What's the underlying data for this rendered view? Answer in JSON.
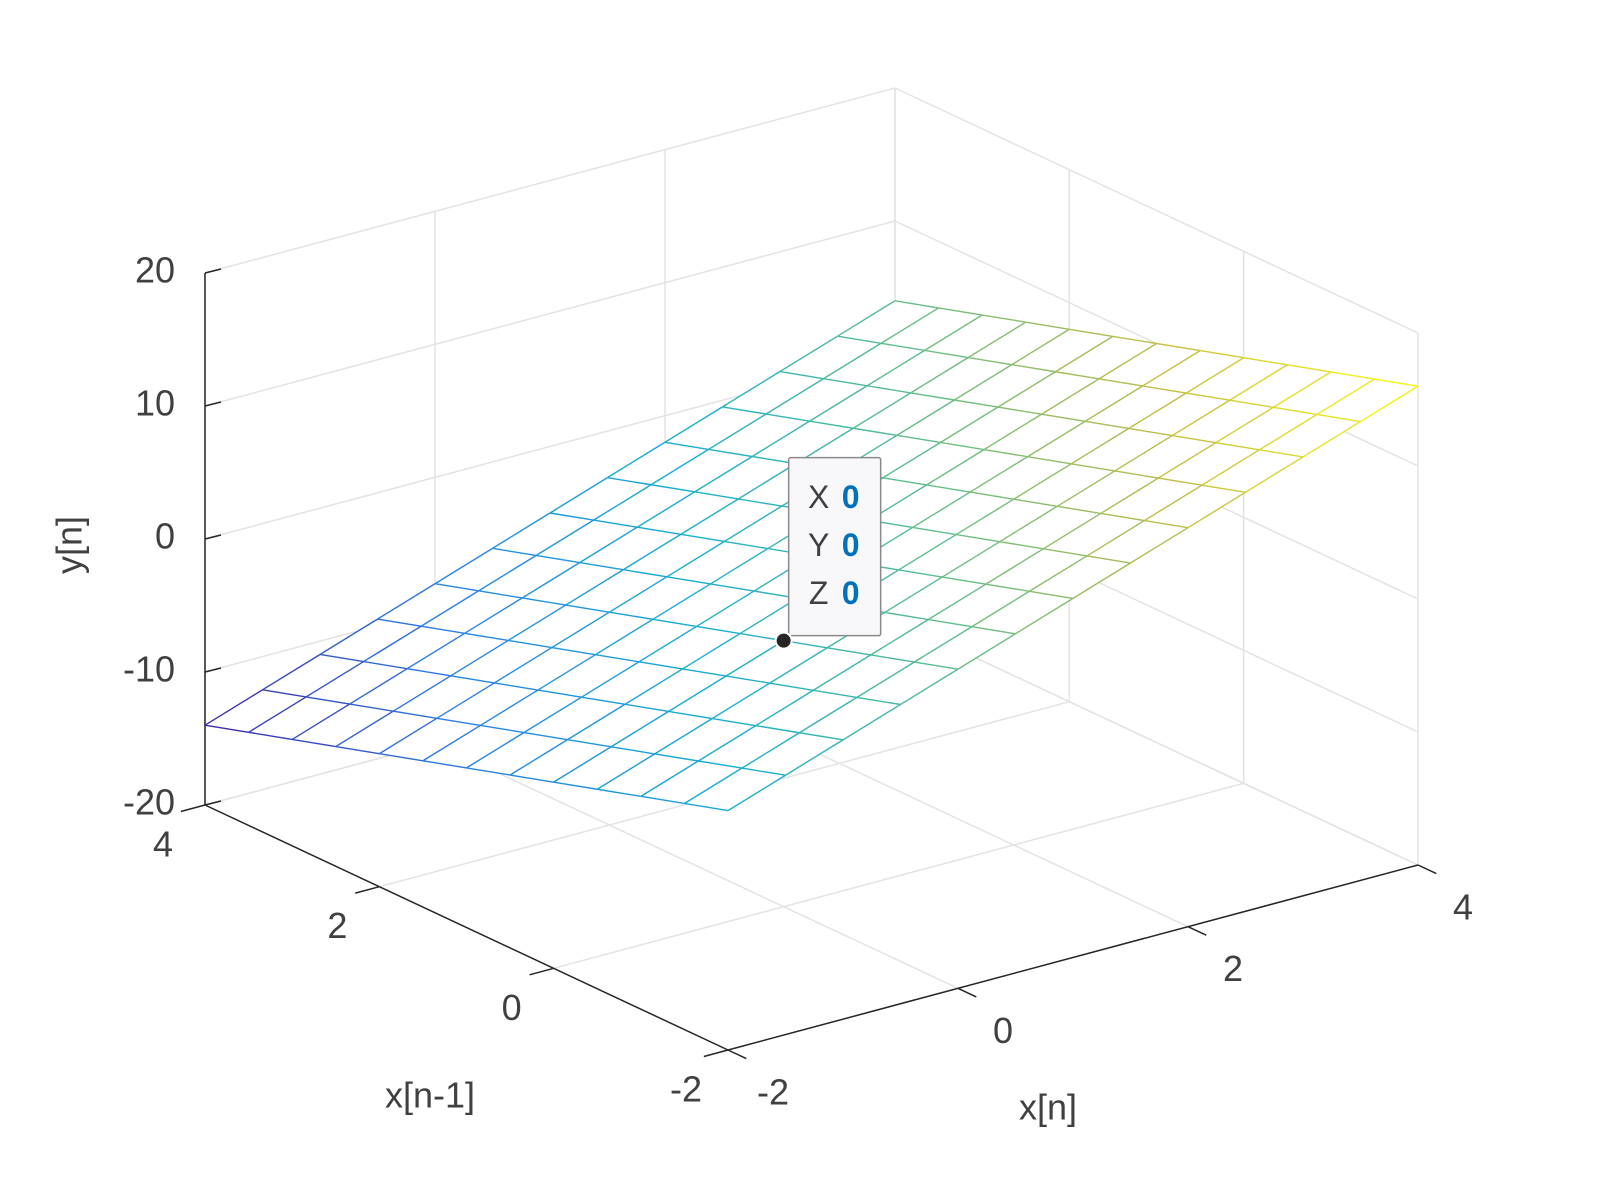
{
  "chart_data": {
    "type": "mesh",
    "xlabel": "x[n]",
    "ylabel": "x[n-1]",
    "zlabel": "y[n]",
    "x": [
      -2,
      -1.5,
      -1,
      -0.5,
      0,
      0.5,
      1,
      1.5,
      2,
      2.5,
      3,
      3.5,
      4
    ],
    "y": [
      -2,
      -1.5,
      -1,
      -0.5,
      0,
      0.5,
      1,
      1.5,
      2,
      2.5,
      3,
      3.5,
      4
    ],
    "z": [
      [
        -2,
        -0.5,
        1,
        2.5,
        4,
        5.5,
        7,
        8.5,
        10,
        11.5,
        13,
        14.5,
        16
      ],
      [
        -3,
        -1.5,
        0,
        1.5,
        3,
        4.5,
        6,
        7.5,
        9,
        10.5,
        12,
        13.5,
        15
      ],
      [
        -4,
        -2.5,
        -1,
        0.5,
        2,
        3.5,
        5,
        6.5,
        8,
        9.5,
        11,
        12.5,
        14
      ],
      [
        -5,
        -3.5,
        -2,
        -0.5,
        1,
        2.5,
        4,
        5.5,
        7,
        8.5,
        10,
        11.5,
        13
      ],
      [
        -6,
        -4.5,
        -3,
        -1.5,
        0,
        1.5,
        3,
        4.5,
        6,
        7.5,
        9,
        10.5,
        12
      ],
      [
        -7,
        -5.5,
        -4,
        -2.5,
        -1,
        0.5,
        2,
        3.5,
        5,
        6.5,
        8,
        9.5,
        11
      ],
      [
        -8,
        -6.5,
        -5,
        -3.5,
        -2,
        -0.5,
        1,
        2.5,
        4,
        5.5,
        7,
        8.5,
        10
      ],
      [
        -9,
        -7.5,
        -6,
        -4.5,
        -3,
        -1.5,
        0,
        1.5,
        3,
        4.5,
        6,
        7.5,
        9
      ],
      [
        -10,
        -8.5,
        -7,
        -5.5,
        -4,
        -2.5,
        -1,
        0.5,
        2,
        3.5,
        5,
        6.5,
        8
      ],
      [
        -11,
        -9.5,
        -8,
        -6.5,
        -5,
        -3.5,
        -2,
        -0.5,
        1,
        2.5,
        4,
        5.5,
        7
      ],
      [
        -12,
        -10.5,
        -9,
        -7.5,
        -6,
        -4.5,
        -3,
        -1.5,
        0,
        1.5,
        3,
        4.5,
        6
      ],
      [
        -13,
        -11.5,
        -10,
        -8.5,
        -7,
        -5.5,
        -4,
        -2.5,
        -1,
        0.5,
        2,
        3.5,
        5
      ],
      [
        -14,
        -12.5,
        -11,
        -9.5,
        -8,
        -6.5,
        -5,
        -3.5,
        -2,
        -0.5,
        1,
        2.5,
        4
      ]
    ],
    "xlim": [
      -2,
      4
    ],
    "ylim": [
      -2,
      4
    ],
    "zlim": [
      -20,
      20
    ],
    "xticks": [
      -2,
      0,
      2,
      4
    ],
    "yticks": [
      -2,
      0,
      2,
      4
    ],
    "zticks": [
      -20,
      -10,
      0,
      10,
      20
    ],
    "grid": true,
    "colormap": [
      "#3e26a8",
      "#2a7fe8",
      "#15aed4",
      "#5fbe8c",
      "#c4bd44",
      "#f9fb0e"
    ],
    "datatip": {
      "labels": [
        "X",
        "Y",
        "Z"
      ],
      "values": [
        0,
        0,
        0
      ]
    }
  }
}
